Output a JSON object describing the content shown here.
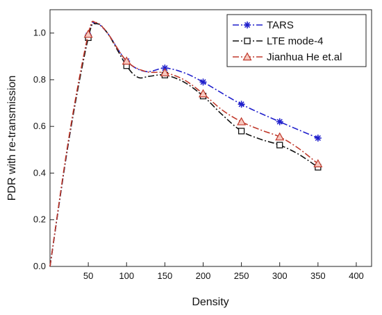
{
  "chart_data": {
    "type": "line",
    "xlabel": "Density",
    "ylabel": "PDR with re-transmission",
    "xlim": [
      0,
      420
    ],
    "ylim": [
      0,
      1.1
    ],
    "x_ticks": [
      50,
      100,
      150,
      200,
      250,
      300,
      350,
      400
    ],
    "y_ticks": [
      0.0,
      0.2,
      0.4,
      0.6,
      0.8,
      1.0
    ],
    "x_tick_labels": [
      "50",
      "100",
      "150",
      "200",
      "250",
      "300",
      "350",
      "400"
    ],
    "y_tick_labels": [
      "0.0",
      "0.2",
      "0.4",
      "0.6",
      "0.8",
      "1.0"
    ],
    "legend_position": "top-right",
    "grid": false,
    "series": [
      {
        "name": "TARS",
        "color": "#1f1fcc",
        "marker": "asterisk",
        "dash": "9 3 2 3",
        "x": [
          50,
          100,
          150,
          200,
          250,
          300,
          350
        ],
        "y": [
          0.99,
          0.88,
          0.85,
          0.79,
          0.695,
          0.62,
          0.55
        ],
        "curve": [
          [
            0,
            0
          ],
          [
            25,
            0.55
          ],
          [
            50,
            0.99
          ],
          [
            60,
            1.04
          ],
          [
            75,
            1.0
          ],
          [
            100,
            0.88
          ],
          [
            125,
            0.835
          ],
          [
            150,
            0.85
          ],
          [
            175,
            0.83
          ],
          [
            200,
            0.79
          ],
          [
            250,
            0.695
          ],
          [
            300,
            0.62
          ],
          [
            350,
            0.55
          ]
        ]
      },
      {
        "name": "LTE mode-4",
        "color": "#111111",
        "marker": "square",
        "dash": "9 3 2 3",
        "x": [
          50,
          100,
          150,
          200,
          250,
          300,
          350
        ],
        "y": [
          0.98,
          0.86,
          0.82,
          0.73,
          0.58,
          0.52,
          0.425
        ],
        "curve": [
          [
            0,
            0
          ],
          [
            25,
            0.55
          ],
          [
            50,
            0.98
          ],
          [
            60,
            1.04
          ],
          [
            75,
            1.0
          ],
          [
            100,
            0.86
          ],
          [
            115,
            0.81
          ],
          [
            130,
            0.815
          ],
          [
            150,
            0.82
          ],
          [
            175,
            0.79
          ],
          [
            200,
            0.73
          ],
          [
            225,
            0.65
          ],
          [
            250,
            0.58
          ],
          [
            275,
            0.545
          ],
          [
            300,
            0.52
          ],
          [
            325,
            0.48
          ],
          [
            350,
            0.425
          ]
        ]
      },
      {
        "name": "Jianhua He et.al",
        "color": "#c0392b",
        "marker": "triangle",
        "dash": "9 3 2 3",
        "x": [
          50,
          100,
          150,
          200,
          250,
          300,
          350
        ],
        "y": [
          0.995,
          0.88,
          0.83,
          0.74,
          0.62,
          0.555,
          0.44
        ],
        "curve": [
          [
            0,
            0
          ],
          [
            25,
            0.56
          ],
          [
            50,
            0.995
          ],
          [
            60,
            1.045
          ],
          [
            75,
            1.0
          ],
          [
            100,
            0.88
          ],
          [
            125,
            0.835
          ],
          [
            150,
            0.83
          ],
          [
            175,
            0.8
          ],
          [
            200,
            0.74
          ],
          [
            225,
            0.67
          ],
          [
            250,
            0.62
          ],
          [
            275,
            0.585
          ],
          [
            300,
            0.555
          ],
          [
            325,
            0.505
          ],
          [
            350,
            0.44
          ]
        ]
      }
    ]
  }
}
